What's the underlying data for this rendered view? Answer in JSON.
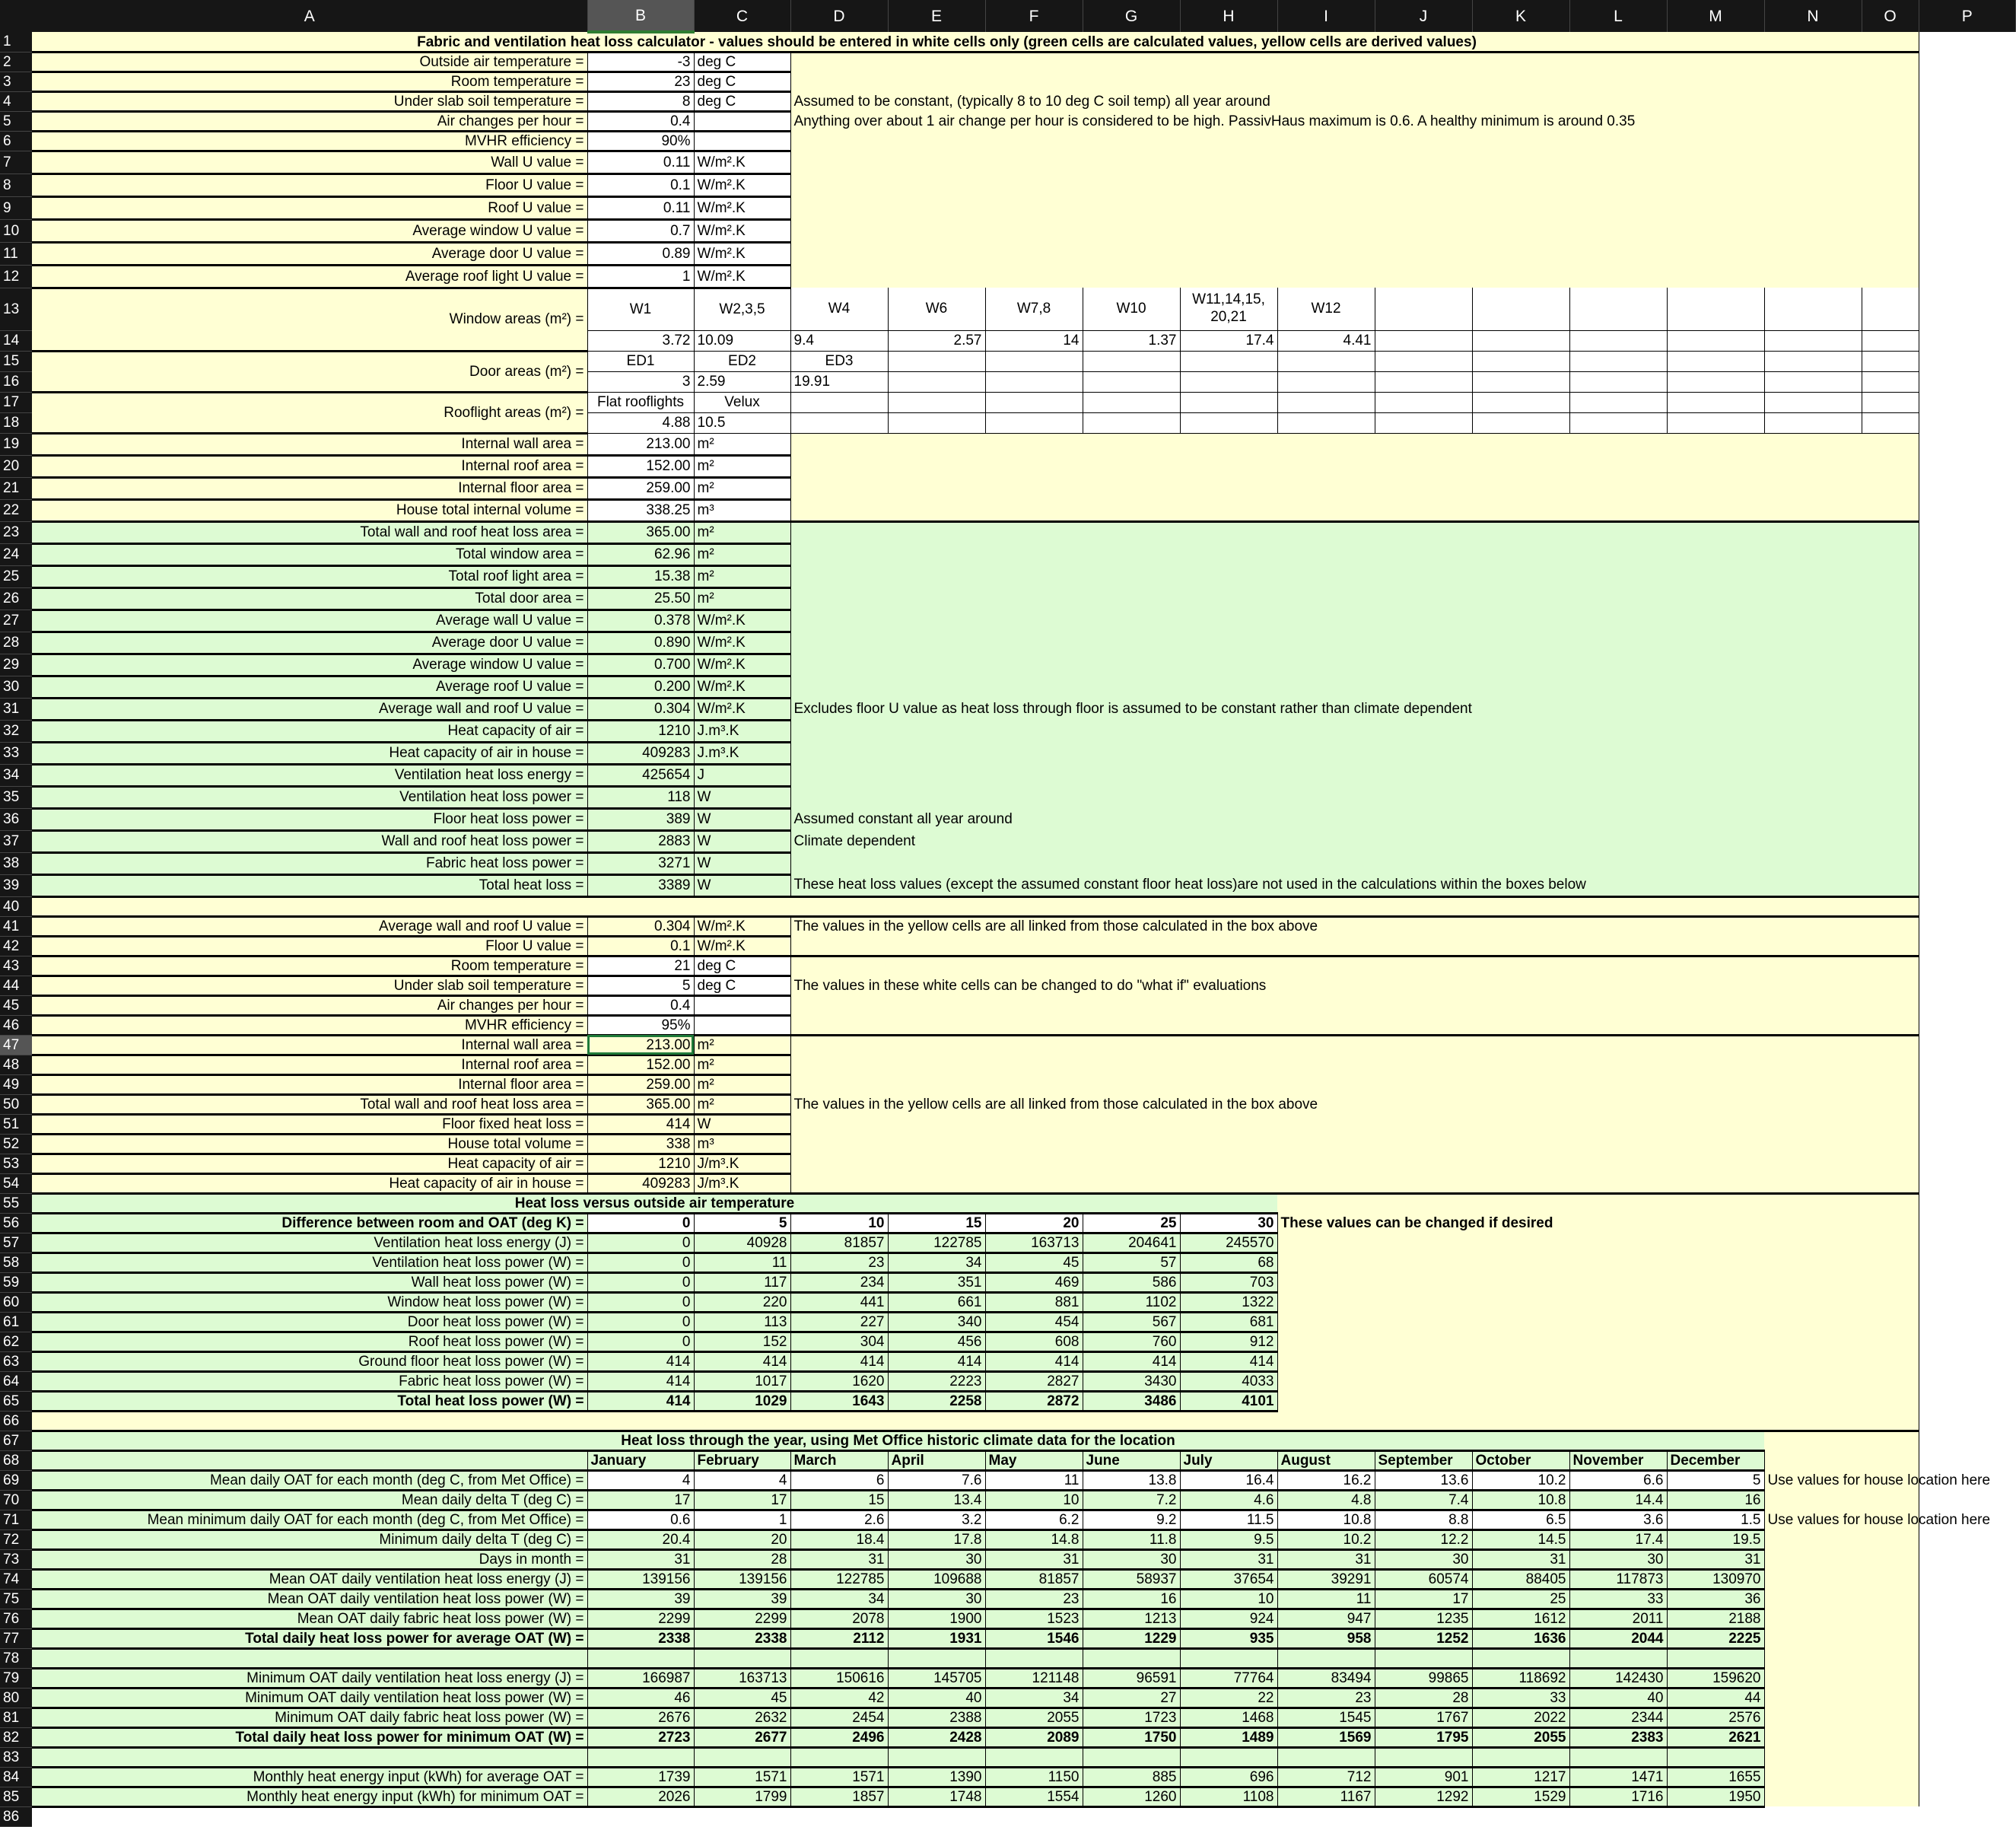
{
  "colors": {
    "derived_yellow": "#ffffd4",
    "calculated_green": "#ddfbd3",
    "input_white": "#ffffff",
    "header_dark": "#161616",
    "selection_green": "#1f7a3a"
  },
  "selection": {
    "cell": "B47"
  },
  "sheet": {
    "column_headers": [
      "A",
      "B",
      "C",
      "D",
      "E",
      "F",
      "G",
      "H",
      "I",
      "J",
      "K",
      "L",
      "M",
      "N",
      "O",
      "P"
    ],
    "row_numbers": [
      1,
      2,
      3,
      4,
      5,
      6,
      7,
      8,
      9,
      10,
      11,
      12,
      13,
      14,
      15,
      16,
      17,
      18,
      19,
      20,
      21,
      22,
      23,
      24,
      25,
      26,
      27,
      28,
      29,
      30,
      31,
      32,
      33,
      34,
      35,
      36,
      37,
      38,
      39,
      40,
      41,
      42,
      43,
      44,
      45,
      46,
      47,
      48,
      49,
      50,
      51,
      52,
      53,
      54,
      55,
      56,
      57,
      58,
      59,
      60,
      61,
      62,
      63,
      64,
      65,
      66,
      67,
      68,
      69,
      70,
      71,
      72,
      73,
      74,
      75,
      76,
      77,
      78,
      79,
      80,
      81,
      82,
      83,
      84,
      85,
      86
    ],
    "rows": {
      "1": {
        "A": "Fabric and ventilation heat loss calculator - values should be entered in white cells only (green cells are calculated values, yellow cells are derived values)"
      },
      "2": {
        "A": "Outside air temperature =",
        "B": "-3",
        "C": "deg C"
      },
      "3": {
        "A": "Room temperature =",
        "B": "23",
        "C": "deg C"
      },
      "4": {
        "A": "Under slab soil temperature =",
        "B": "8",
        "C": "deg C",
        "D": "Assumed to be constant, (typically 8 to 10 deg C soil temp) all year around"
      },
      "5": {
        "A": "Air changes per hour =",
        "B": "0.4",
        "D": "Anything over about 1 air change per hour is considered to be high.  PassivHaus maximum is 0.6.  A healthy minimum is around 0.35"
      },
      "6": {
        "A": "MVHR efficiency =",
        "B": "90%"
      },
      "7": {
        "A": "Wall U value =",
        "B": "0.11",
        "C": "W/m².K"
      },
      "8": {
        "A": "Floor U value =",
        "B": "0.1",
        "C": "W/m².K"
      },
      "9": {
        "A": "Roof U value =",
        "B": "0.11",
        "C": "W/m².K"
      },
      "10": {
        "A": "Average window U value =",
        "B": "0.7",
        "C": "W/m².K"
      },
      "11": {
        "A": "Average door U value =",
        "B": "0.89",
        "C": "W/m².K"
      },
      "12": {
        "A": "Average roof light U value =",
        "B": "1",
        "C": "W/m².K"
      },
      "13": {
        "A": "Window areas (m²) =",
        "B": "W1",
        "C": "W2,3,5",
        "D": "W4",
        "E": "W6",
        "F": "W7,8",
        "G": "W10",
        "H": "W11,14,15, 20,21",
        "I": "W12"
      },
      "14": {
        "B": "3.72",
        "C": "10.09",
        "D": "9.4",
        "E": "2.57",
        "F": "14",
        "G": "1.37",
        "H": "17.4",
        "I": "4.41"
      },
      "15": {
        "A": "Door areas (m²) =",
        "B": "ED1",
        "C": "ED2",
        "D": "ED3"
      },
      "16": {
        "B": "3",
        "C": "2.59",
        "D": "19.91"
      },
      "17": {
        "A": "Rooflight areas (m²) =",
        "B": "Flat rooflights",
        "C": "Velux"
      },
      "18": {
        "B": "4.88",
        "C": "10.5"
      },
      "19": {
        "A": "Internal wall area =",
        "B": "213.00",
        "C": "m²"
      },
      "20": {
        "A": "Internal roof area =",
        "B": "152.00",
        "C": "m²"
      },
      "21": {
        "A": "Internal floor area =",
        "B": "259.00",
        "C": "m²"
      },
      "22": {
        "A": "House total internal volume =",
        "B": "338.25",
        "C": "m³"
      },
      "23": {
        "A": "Total wall and roof heat loss area =",
        "B": "365.00",
        "C": "m²"
      },
      "24": {
        "A": "Total window area =",
        "B": "62.96",
        "C": "m²"
      },
      "25": {
        "A": "Total roof light area =",
        "B": "15.38",
        "C": "m²"
      },
      "26": {
        "A": "Total door area =",
        "B": "25.50",
        "C": "m²"
      },
      "27": {
        "A": "Average wall U value =",
        "B": "0.378",
        "C": "W/m².K"
      },
      "28": {
        "A": "Average door U value =",
        "B": "0.890",
        "C": "W/m².K"
      },
      "29": {
        "A": "Average window U value =",
        "B": "0.700",
        "C": "W/m².K"
      },
      "30": {
        "A": "Average roof U value =",
        "B": "0.200",
        "C": "W/m².K"
      },
      "31": {
        "A": "Average wall and roof U value =",
        "B": "0.304",
        "C": "W/m².K",
        "D": "Excludes floor U value as heat loss through floor is assumed to be constant rather than climate dependent"
      },
      "32": {
        "A": "Heat capacity of air =",
        "B": "1210",
        "C": "J.m³.K"
      },
      "33": {
        "A": "Heat capacity of air in house =",
        "B": "409283",
        "C": "J.m³.K"
      },
      "34": {
        "A": "Ventilation heat loss energy =",
        "B": "425654",
        "C": "J"
      },
      "35": {
        "A": "Ventilation heat loss power =",
        "B": "118",
        "C": "W"
      },
      "36": {
        "A": "Floor heat loss power =",
        "B": "389",
        "C": "W",
        "D": "Assumed constant all year around"
      },
      "37": {
        "A": "Wall and roof heat loss power =",
        "B": "2883",
        "C": "W",
        "D": "Climate dependent"
      },
      "38": {
        "A": "Fabric heat loss power =",
        "B": "3271",
        "C": "W"
      },
      "39": {
        "A": "Total heat loss =",
        "B": "3389",
        "C": "W",
        "D": "These heat loss values (except the assumed constant floor heat loss)are not used in the calculations within the boxes below"
      },
      "40": {},
      "41": {
        "A": "Average wall and roof U value =",
        "B": "0.304",
        "C": "W/m².K",
        "D": "The values in the yellow cells are all linked from those calculated in the box above"
      },
      "42": {
        "A": "Floor U value =",
        "B": "0.1",
        "C": "W/m².K"
      },
      "43": {
        "A": "Room temperature =",
        "B": "21",
        "C": "deg C"
      },
      "44": {
        "A": "Under slab soil temperature =",
        "B": "5",
        "C": "deg C",
        "D": "The values in these white cells can be changed to do \"what if\" evaluations"
      },
      "45": {
        "A": "Air changes per hour =",
        "B": "0.4"
      },
      "46": {
        "A": "MVHR efficiency =",
        "B": "95%"
      },
      "47": {
        "A": "Internal wall area =",
        "B": "213.00",
        "C": "m²"
      },
      "48": {
        "A": "Internal roof area =",
        "B": "152.00",
        "C": "m²"
      },
      "49": {
        "A": "Internal floor area =",
        "B": "259.00",
        "C": "m²"
      },
      "50": {
        "A": "Total wall and roof heat loss area =",
        "B": "365.00",
        "C": "m²",
        "D": "The values in the yellow cells are all linked from those calculated in the box above"
      },
      "51": {
        "A": "Floor fixed heat loss =",
        "B": "414",
        "C": "W"
      },
      "52": {
        "A": "House total volume =",
        "B": "338",
        "C": "m³"
      },
      "53": {
        "A": "Heat capacity of air =",
        "B": "1210",
        "C": "J/m³.K"
      },
      "54": {
        "A": "Heat capacity of air in house =",
        "B": "409283",
        "C": "J/m³.K"
      },
      "55": {
        "A": "Heat loss versus outside air temperature"
      },
      "56": {
        "A": "Difference between room and OAT (deg K) =",
        "B": "0",
        "C": "5",
        "D": "10",
        "E": "15",
        "F": "20",
        "G": "25",
        "H": "30",
        "I": "These values can be changed if desired"
      },
      "57": {
        "A": "Ventilation heat loss energy (J) =",
        "B": "0",
        "C": "40928",
        "D": "81857",
        "E": "122785",
        "F": "163713",
        "G": "204641",
        "H": "245570"
      },
      "58": {
        "A": "Ventilation heat loss power (W) =",
        "B": "0",
        "C": "11",
        "D": "23",
        "E": "34",
        "F": "45",
        "G": "57",
        "H": "68"
      },
      "59": {
        "A": "Wall heat loss power (W) =",
        "B": "0",
        "C": "117",
        "D": "234",
        "E": "351",
        "F": "469",
        "G": "586",
        "H": "703"
      },
      "60": {
        "A": "Window heat loss power (W) =",
        "B": "0",
        "C": "220",
        "D": "441",
        "E": "661",
        "F": "881",
        "G": "1102",
        "H": "1322"
      },
      "61": {
        "A": "Door heat loss power (W) =",
        "B": "0",
        "C": "113",
        "D": "227",
        "E": "340",
        "F": "454",
        "G": "567",
        "H": "681"
      },
      "62": {
        "A": "Roof heat loss power (W) =",
        "B": "0",
        "C": "152",
        "D": "304",
        "E": "456",
        "F": "608",
        "G": "760",
        "H": "912"
      },
      "63": {
        "A": "Ground floor heat loss power (W) =",
        "B": "414",
        "C": "414",
        "D": "414",
        "E": "414",
        "F": "414",
        "G": "414",
        "H": "414"
      },
      "64": {
        "A": "Fabric heat loss power (W) =",
        "B": "414",
        "C": "1017",
        "D": "1620",
        "E": "2223",
        "F": "2827",
        "G": "3430",
        "H": "4033"
      },
      "65": {
        "A": "Total heat loss power (W) =",
        "B": "414",
        "C": "1029",
        "D": "1643",
        "E": "2258",
        "F": "2872",
        "G": "3486",
        "H": "4101"
      },
      "66": {},
      "67": {
        "A": "Heat loss through the year, using Met Office historic climate data for the location"
      },
      "68": {
        "B": "January",
        "C": "February",
        "D": "March",
        "E": "April",
        "F": "May",
        "G": "June",
        "H": "July",
        "I": "August",
        "J": "September",
        "K": "October",
        "L": "November",
        "M": "December"
      },
      "69": {
        "A": "Mean daily OAT for each month (deg C, from Met Office) =",
        "B": "4",
        "C": "4",
        "D": "6",
        "E": "7.6",
        "F": "11",
        "G": "13.8",
        "H": "16.4",
        "I": "16.2",
        "J": "13.6",
        "K": "10.2",
        "L": "6.6",
        "M": "5",
        "N": "Use values for house location here"
      },
      "70": {
        "A": "Mean daily delta T (deg C) =",
        "B": "17",
        "C": "17",
        "D": "15",
        "E": "13.4",
        "F": "10",
        "G": "7.2",
        "H": "4.6",
        "I": "4.8",
        "J": "7.4",
        "K": "10.8",
        "L": "14.4",
        "M": "16"
      },
      "71": {
        "A": "Mean minimum daily OAT for each month (deg C, from Met Office) =",
        "B": "0.6",
        "C": "1",
        "D": "2.6",
        "E": "3.2",
        "F": "6.2",
        "G": "9.2",
        "H": "11.5",
        "I": "10.8",
        "J": "8.8",
        "K": "6.5",
        "L": "3.6",
        "M": "1.5",
        "N": "Use values for house location here"
      },
      "72": {
        "A": "Minimum daily delta T (deg C) =",
        "B": "20.4",
        "C": "20",
        "D": "18.4",
        "E": "17.8",
        "F": "14.8",
        "G": "11.8",
        "H": "9.5",
        "I": "10.2",
        "J": "12.2",
        "K": "14.5",
        "L": "17.4",
        "M": "19.5"
      },
      "73": {
        "A": "Days in month =",
        "B": "31",
        "C": "28",
        "D": "31",
        "E": "30",
        "F": "31",
        "G": "30",
        "H": "31",
        "I": "31",
        "J": "30",
        "K": "31",
        "L": "30",
        "M": "31"
      },
      "74": {
        "A": "Mean OAT daily ventilation heat loss energy (J) =",
        "B": "139156",
        "C": "139156",
        "D": "122785",
        "E": "109688",
        "F": "81857",
        "G": "58937",
        "H": "37654",
        "I": "39291",
        "J": "60574",
        "K": "88405",
        "L": "117873",
        "M": "130970"
      },
      "75": {
        "A": "Mean OAT daily ventilation heat loss power (W) =",
        "B": "39",
        "C": "39",
        "D": "34",
        "E": "30",
        "F": "23",
        "G": "16",
        "H": "10",
        "I": "11",
        "J": "17",
        "K": "25",
        "L": "33",
        "M": "36"
      },
      "76": {
        "A": "Mean OAT daily fabric heat loss power (W) =",
        "B": "2299",
        "C": "2299",
        "D": "2078",
        "E": "1900",
        "F": "1523",
        "G": "1213",
        "H": "924",
        "I": "947",
        "J": "1235",
        "K": "1612",
        "L": "2011",
        "M": "2188"
      },
      "77": {
        "A": "Total daily heat loss power for average OAT (W) =",
        "B": "2338",
        "C": "2338",
        "D": "2112",
        "E": "1931",
        "F": "1546",
        "G": "1229",
        "H": "935",
        "I": "958",
        "J": "1252",
        "K": "1636",
        "L": "2044",
        "M": "2225"
      },
      "78": {},
      "79": {
        "A": "Minimum OAT daily ventilation heat loss energy (J) =",
        "B": "166987",
        "C": "163713",
        "D": "150616",
        "E": "145705",
        "F": "121148",
        "G": "96591",
        "H": "77764",
        "I": "83494",
        "J": "99865",
        "K": "118692",
        "L": "142430",
        "M": "159620"
      },
      "80": {
        "A": "Minimum OAT daily ventilation heat loss power (W) =",
        "B": "46",
        "C": "45",
        "D": "42",
        "E": "40",
        "F": "34",
        "G": "27",
        "H": "22",
        "I": "23",
        "J": "28",
        "K": "33",
        "L": "40",
        "M": "44"
      },
      "81": {
        "A": "Minimum OAT daily fabric heat loss power (W) =",
        "B": "2676",
        "C": "2632",
        "D": "2454",
        "E": "2388",
        "F": "2055",
        "G": "1723",
        "H": "1468",
        "I": "1545",
        "J": "1767",
        "K": "2022",
        "L": "2344",
        "M": "2576"
      },
      "82": {
        "A": "Total daily heat loss power for minimum OAT (W) =",
        "B": "2723",
        "C": "2677",
        "D": "2496",
        "E": "2428",
        "F": "2089",
        "G": "1750",
        "H": "1489",
        "I": "1569",
        "J": "1795",
        "K": "2055",
        "L": "2383",
        "M": "2621"
      },
      "83": {},
      "84": {
        "A": "Monthly heat energy input (kWh) for average OAT =",
        "B": "1739",
        "C": "1571",
        "D": "1571",
        "E": "1390",
        "F": "1150",
        "G": "885",
        "H": "696",
        "I": "712",
        "J": "901",
        "K": "1217",
        "L": "1471",
        "M": "1655"
      },
      "85": {
        "A": "Monthly heat energy input (kWh) for minimum OAT =",
        "B": "2026",
        "C": "1799",
        "D": "1857",
        "E": "1748",
        "F": "1554",
        "G": "1260",
        "H": "1108",
        "I": "1167",
        "J": "1292",
        "K": "1529",
        "L": "1716",
        "M": "1950"
      },
      "86": {}
    }
  }
}
